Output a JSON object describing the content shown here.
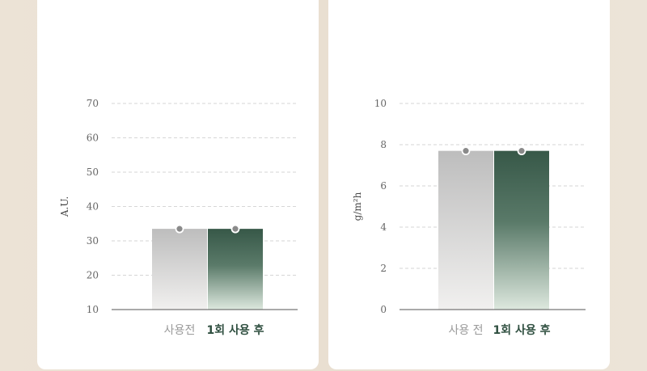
{
  "chart_data": [
    {
      "type": "bar",
      "categories": [
        "사용전",
        "1회 사용 후"
      ],
      "values": [
        33.5,
        33.5
      ],
      "ylabel": "A.U.",
      "ylim": [
        10,
        70
      ],
      "yticks": [
        10,
        20,
        30,
        40,
        50,
        60,
        70
      ],
      "grid": true
    },
    {
      "type": "bar",
      "categories": [
        "사용 전",
        "1회 사용 후"
      ],
      "values": [
        7.7,
        7.7
      ],
      "ylabel": "g/m²h",
      "ylim": [
        0,
        10
      ],
      "yticks": [
        0,
        2,
        4,
        6,
        8,
        10
      ],
      "grid": true
    }
  ]
}
